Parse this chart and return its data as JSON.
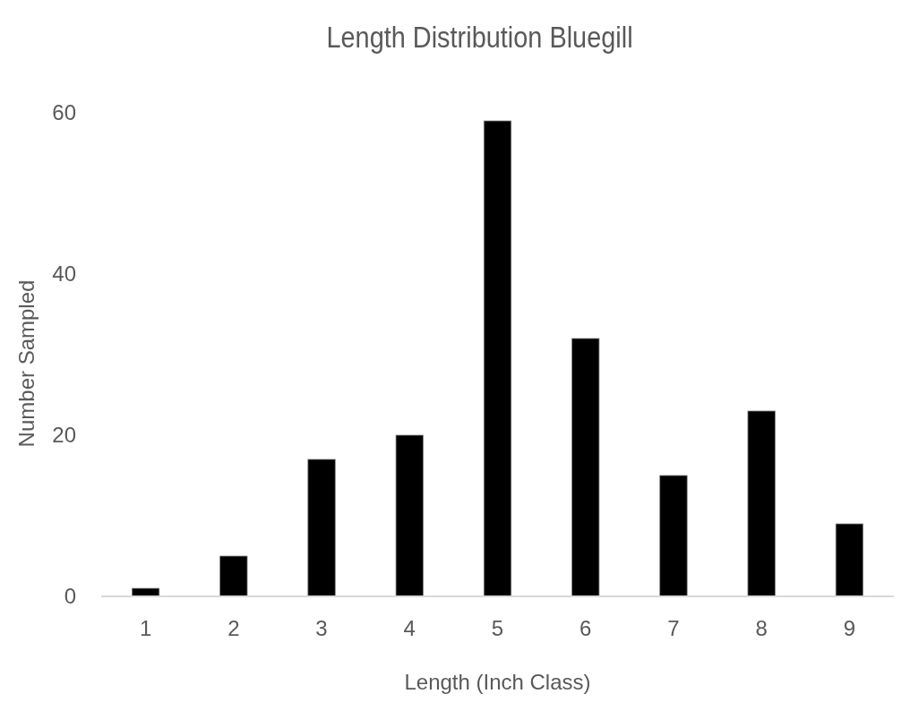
{
  "chart_data": {
    "type": "bar",
    "title": "Length Distribution Bluegill",
    "xlabel": "Length (Inch Class)",
    "ylabel": "Number Sampled",
    "categories": [
      "1",
      "2",
      "3",
      "4",
      "5",
      "6",
      "7",
      "8",
      "9"
    ],
    "values": [
      1,
      5,
      17,
      20,
      59,
      32,
      15,
      23,
      9
    ],
    "color": "#000000",
    "ylim": [
      0,
      60
    ],
    "yticks": [
      0,
      20,
      40,
      60
    ]
  }
}
